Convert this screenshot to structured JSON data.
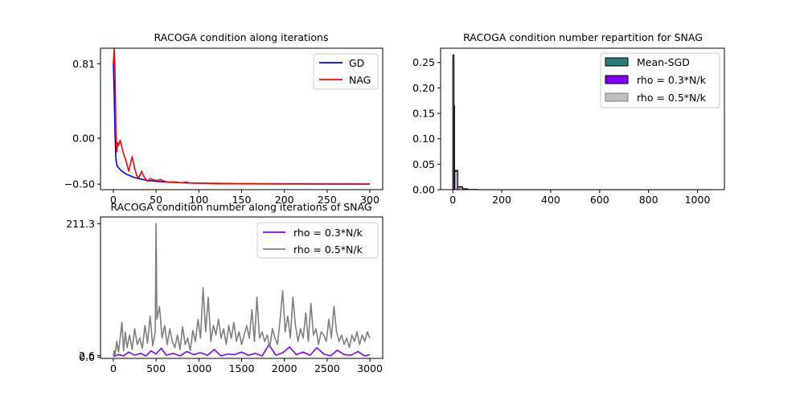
{
  "chart_data": [
    {
      "type": "line",
      "title": "RACOGA condition along iterations",
      "xlabel": "",
      "ylabel": "",
      "xlim": [
        -15,
        315
      ],
      "ylim": [
        -0.56,
        0.98
      ],
      "xticks": [
        0,
        50,
        100,
        150,
        200,
        250,
        300
      ],
      "yticks": [
        0.81,
        0.0,
        -0.5
      ],
      "ytick_labels": [
        "0.81",
        "0.00",
        "−0.50"
      ],
      "legend_position": "upper right",
      "series": [
        {
          "name": "GD",
          "color": "#0000ff",
          "x": [
            0,
            1,
            2,
            3,
            4,
            5,
            7,
            10,
            15,
            20,
            25,
            30,
            40,
            50,
            60,
            80,
            100,
            150,
            200,
            250,
            300
          ],
          "y": [
            0.81,
            0.5,
            0.05,
            -0.22,
            -0.29,
            -0.31,
            -0.33,
            -0.36,
            -0.39,
            -0.41,
            -0.43,
            -0.44,
            -0.46,
            -0.47,
            -0.475,
            -0.485,
            -0.49,
            -0.495,
            -0.497,
            -0.498,
            -0.5
          ]
        },
        {
          "name": "NAG",
          "color": "#ff0000",
          "x": [
            0,
            1,
            2,
            3,
            4,
            5,
            6,
            8,
            10,
            12,
            15,
            18,
            20,
            22,
            25,
            28,
            30,
            33,
            36,
            40,
            43,
            46,
            50,
            55,
            60,
            65,
            70,
            75,
            80,
            85,
            90,
            100,
            110,
            120,
            150,
            200,
            250,
            300
          ],
          "y": [
            0.81,
            0.97,
            0.72,
            0.1,
            -0.15,
            -0.05,
            -0.08,
            -0.02,
            -0.1,
            -0.17,
            -0.25,
            -0.36,
            -0.28,
            -0.2,
            -0.33,
            -0.42,
            -0.43,
            -0.36,
            -0.42,
            -0.47,
            -0.44,
            -0.45,
            -0.46,
            -0.45,
            -0.47,
            -0.48,
            -0.475,
            -0.48,
            -0.485,
            -0.478,
            -0.488,
            -0.49,
            -0.492,
            -0.495,
            -0.496,
            -0.498,
            -0.499,
            -0.5
          ]
        }
      ]
    },
    {
      "type": "bar",
      "title": "RACOGA condition number repartition for SNAG",
      "xlabel": "",
      "ylabel": "",
      "xlim": [
        -50,
        1110
      ],
      "ylim": [
        0,
        0.278
      ],
      "xticks": [
        0,
        200,
        400,
        600,
        800,
        1000
      ],
      "yticks": [
        0.0,
        0.05,
        0.1,
        0.15,
        0.2,
        0.25
      ],
      "ytick_labels": [
        "0.00",
        "0.05",
        "0.10",
        "0.15",
        "0.20",
        "0.25"
      ],
      "legend_position": "upper right",
      "series": [
        {
          "name": "Mean-SGD",
          "color": "#2e7b7b",
          "bins": [
            [
              0,
              5
            ],
            [
              5,
              8
            ],
            [
              8,
              20
            ],
            [
              20,
              40
            ],
            [
              40,
              60
            ],
            [
              60,
              100
            ]
          ],
          "values": [
            0.265,
            0.165,
            0.038,
            0.006,
            0.002,
            0.0005
          ]
        },
        {
          "name": "rho = 0.3*N/k",
          "color": "#7f00ff",
          "bins": [
            [
              0,
              5
            ],
            [
              5,
              8
            ],
            [
              8,
              20
            ],
            [
              20,
              40
            ]
          ],
          "values": [
            0.255,
            0.16,
            0.037,
            0.005
          ]
        },
        {
          "name": "rho = 0.5*N/k",
          "color": "#bfbfbf",
          "bins": [
            [
              0,
              5
            ],
            [
              5,
              8
            ],
            [
              8,
              20
            ],
            [
              20,
              40
            ],
            [
              40,
              60
            ],
            [
              60,
              100
            ],
            [
              100,
              1060
            ]
          ],
          "values": [
            0.26,
            0.16,
            0.036,
            0.005,
            0.0015,
            0.0005,
            0.0002
          ]
        }
      ]
    },
    {
      "type": "line",
      "title": "RACOGA condition number along iterations of SNAG",
      "xlabel": "",
      "ylabel": "",
      "xlim": [
        -150,
        3150
      ],
      "ylim": [
        -2.0,
        221.9
      ],
      "xticks": [
        0,
        500,
        1000,
        1500,
        2000,
        2500,
        3000
      ],
      "yticks": [
        211.3,
        2.6,
        0.0
      ],
      "ytick_labels": [
        "211.3",
        "2.6",
        "0.0"
      ],
      "legend_position": "upper right",
      "series": [
        {
          "name": "rho = 0.3*N/k",
          "color": "#7f00ff",
          "x": [
            0,
            60,
            120,
            180,
            250,
            320,
            380,
            440,
            500,
            560,
            620,
            700,
            780,
            860,
            940,
            1020,
            1100,
            1180,
            1260,
            1340,
            1420,
            1500,
            1580,
            1660,
            1740,
            1820,
            1900,
            1980,
            2060,
            2140,
            2220,
            2300,
            2380,
            2460,
            2540,
            2620,
            2700,
            2780,
            2860,
            2940,
            3000
          ],
          "y": [
            1.0,
            4.0,
            2.0,
            8.0,
            3.0,
            6.0,
            2.0,
            10.0,
            5.0,
            14.0,
            3.0,
            6.0,
            2.0,
            9.0,
            4.0,
            7.0,
            3.0,
            12.0,
            2.0,
            5.0,
            4.0,
            8.0,
            3.0,
            6.0,
            2.0,
            20.0,
            3.0,
            7.0,
            16.0,
            4.0,
            8.0,
            3.0,
            15.0,
            5.0,
            2.0,
            11.0,
            4.0,
            3.0,
            9.0,
            2.0,
            4.0
          ]
        },
        {
          "name": "rho = 0.5*N/k",
          "color": "#7f7f7f",
          "x": [
            0,
            10,
            20,
            40,
            60,
            80,
            100,
            120,
            140,
            160,
            190,
            220,
            250,
            280,
            310,
            340,
            370,
            400,
            430,
            460,
            490,
            500,
            510,
            540,
            570,
            600,
            630,
            660,
            690,
            720,
            750,
            780,
            810,
            840,
            870,
            900,
            930,
            960,
            990,
            1020,
            1050,
            1080,
            1110,
            1140,
            1170,
            1200,
            1230,
            1260,
            1290,
            1320,
            1350,
            1380,
            1410,
            1440,
            1470,
            1500,
            1530,
            1560,
            1590,
            1620,
            1650,
            1680,
            1710,
            1740,
            1770,
            1800,
            1830,
            1860,
            1890,
            1920,
            1950,
            1980,
            2010,
            2040,
            2070,
            2100,
            2130,
            2160,
            2190,
            2220,
            2250,
            2280,
            2310,
            2340,
            2370,
            2400,
            2430,
            2460,
            2490,
            2520,
            2550,
            2580,
            2610,
            2640,
            2670,
            2700,
            2730,
            2760,
            2790,
            2820,
            2850,
            2880,
            2910,
            2940,
            2970,
            3000
          ],
          "y": [
            2.0,
            10.0,
            4.0,
            25.0,
            8.0,
            30.0,
            55.0,
            10.0,
            40.0,
            15.0,
            35.0,
            12.0,
            45.0,
            20.0,
            30.0,
            14.0,
            50.0,
            22.0,
            65.0,
            18.0,
            40.0,
            211.3,
            60.0,
            80.0,
            30.0,
            50.0,
            20.0,
            45.0,
            25.0,
            15.0,
            35.0,
            12.0,
            48.0,
            20.0,
            30.0,
            10.0,
            42.0,
            25.0,
            60.0,
            30.0,
            110.0,
            40.0,
            95.0,
            25.0,
            50.0,
            35.0,
            60.0,
            30.0,
            45.0,
            20.0,
            50.0,
            30.0,
            55.0,
            25.0,
            40.0,
            20.0,
            35.0,
            50.0,
            30.0,
            75.0,
            25.0,
            95.0,
            30.0,
            40.0,
            25.0,
            35.0,
            15.0,
            45.0,
            30.0,
            20.0,
            60.0,
            105.0,
            40.0,
            65.0,
            30.0,
            95.0,
            50.0,
            25.0,
            45.0,
            30.0,
            70.0,
            25.0,
            85.0,
            35.0,
            45.0,
            20.0,
            40.0,
            35.0,
            25.0,
            60.0,
            30.0,
            80.0,
            40.0,
            25.0,
            35.0,
            20.0,
            30.0,
            15.0,
            35.0,
            25.0,
            40.0,
            20.0,
            35.0,
            25.0,
            40.0,
            30.0
          ]
        }
      ]
    }
  ]
}
